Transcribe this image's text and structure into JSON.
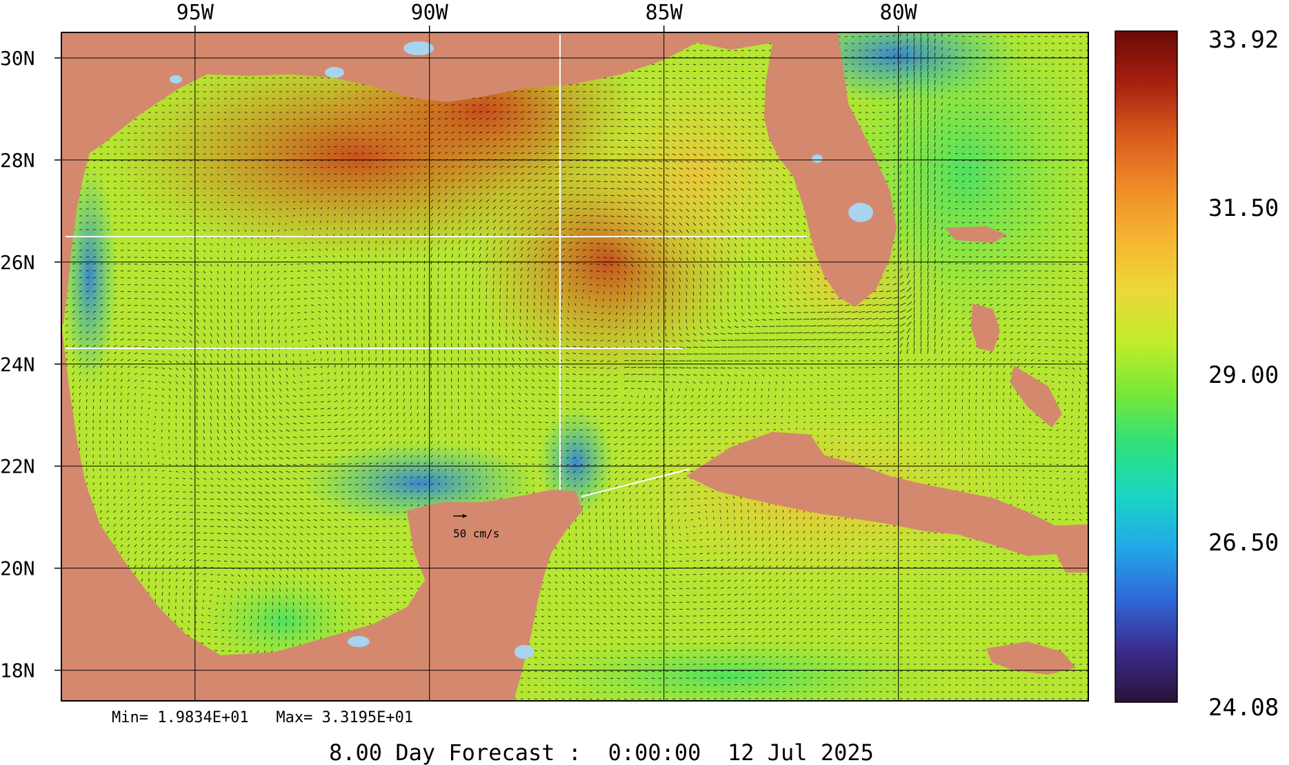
{
  "map": {
    "lon_labels": [
      {
        "value": -95,
        "text": "95W"
      },
      {
        "value": -90,
        "text": "90W"
      },
      {
        "value": -85,
        "text": "85W"
      },
      {
        "value": -80,
        "text": "80W"
      }
    ],
    "lat_labels": [
      {
        "value": 30,
        "text": "30N"
      },
      {
        "value": 28,
        "text": "28N"
      },
      {
        "value": 26,
        "text": "26N"
      },
      {
        "value": 24,
        "text": "24N"
      },
      {
        "value": 22,
        "text": "22N"
      },
      {
        "value": 20,
        "text": "20N"
      },
      {
        "value": 18,
        "text": "18N"
      }
    ],
    "lon_range": [
      -97.85,
      -75.95
    ],
    "lat_range": [
      17.4,
      30.5
    ],
    "land_color": "#d4896f",
    "lake_color": "#a8d4f0"
  },
  "vector_scale": {
    "label": "50 cm/s"
  },
  "colorbar": {
    "labels": [
      "33.92",
      "31.50",
      "29.00",
      "26.50",
      "24.08"
    ],
    "range": [
      24.08,
      33.92
    ],
    "colors": [
      "#2a1238",
      "#3a2c8c",
      "#2f68d8",
      "#21a8e8",
      "#1ad6c2",
      "#2fe07a",
      "#7ae836",
      "#c2ec2c",
      "#ecd838",
      "#f6b432",
      "#ef8a28",
      "#d85a1c",
      "#a62010",
      "#6a0a08"
    ]
  },
  "stats": {
    "text": "Min= 1.9834E+01   Max= 3.3195E+01"
  },
  "title": {
    "text": "8.00 Day Forecast :  0:00:00  12 Jul 2025"
  },
  "icons": {
    "scale_arrow": "arrow-right-icon"
  }
}
